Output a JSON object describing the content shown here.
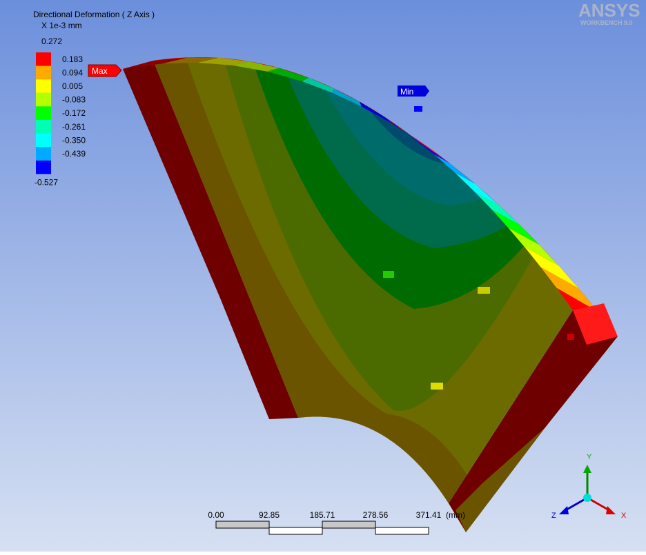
{
  "title": "Directional Deformation ( Z Axis )",
  "unit": "X 1e-3 mm",
  "legend": {
    "labels": [
      "0.272",
      "0.183",
      "0.094",
      "0.005",
      "-0.083",
      "-0.172",
      "-0.261",
      "-0.350",
      "-0.439",
      "-0.527"
    ],
    "colors": [
      "#ff0000",
      "#ffaa00",
      "#ffff00",
      "#b4ff00",
      "#00ff00",
      "#00ffb4",
      "#00ffff",
      "#00aaff",
      "#0000ff"
    ]
  },
  "markers": {
    "max": "Max",
    "min": "Min"
  },
  "logo": {
    "name": "ANSYS",
    "version": "WORKBENCH 9.0"
  },
  "scale_bar": {
    "labels": [
      "0.00",
      "92.85",
      "185.71",
      "278.56",
      "371.41"
    ],
    "unit": "(mm)"
  },
  "triad": {
    "y": "Y",
    "z": "Z",
    "x": "X"
  }
}
